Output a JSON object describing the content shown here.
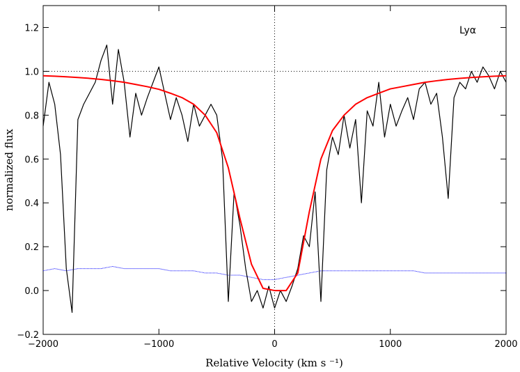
{
  "chart_data": {
    "type": "line",
    "annotation": "Lyα",
    "x_label": "Relative Velocity (km s ⁻¹)",
    "y_label": "normalized flux",
    "xlim": [
      -2000,
      2000
    ],
    "ylim": [
      -0.2,
      1.3
    ],
    "xticks": [
      {
        "value": -2000,
        "label": "−2000"
      },
      {
        "value": -1000,
        "label": "−1000"
      },
      0,
      1000,
      2000
    ],
    "yticks": [
      {
        "value": -0.2,
        "label": "−0.2"
      },
      {
        "value": 0,
        "label": "0.0"
      },
      0.2,
      0.4,
      0.6,
      0.8,
      {
        "value": 1,
        "label": "1.0"
      },
      1.2
    ],
    "hlines": [
      1.0
    ],
    "vlines": [
      0
    ],
    "series": [
      {
        "color": "#000000",
        "width": 1.2,
        "dash": "none",
        "x": [
          -2000,
          -1950,
          -1900,
          -1850,
          -1800,
          -1750,
          -1700,
          -1650,
          -1600,
          -1550,
          -1500,
          -1450,
          -1400,
          -1350,
          -1300,
          -1250,
          -1200,
          -1150,
          -1100,
          -1050,
          -1000,
          -950,
          -900,
          -850,
          -800,
          -750,
          -700,
          -650,
          -600,
          -550,
          -500,
          -450,
          -400,
          -350,
          -300,
          -250,
          -200,
          -150,
          -100,
          -50,
          0,
          50,
          100,
          150,
          200,
          250,
          300,
          350,
          400,
          450,
          500,
          550,
          600,
          650,
          700,
          750,
          800,
          850,
          900,
          950,
          1000,
          1050,
          1100,
          1150,
          1200,
          1250,
          1300,
          1350,
          1400,
          1450,
          1500,
          1550,
          1600,
          1650,
          1700,
          1750,
          1800,
          1850,
          1900,
          1950,
          2000
        ],
        "values": [
          0.75,
          0.95,
          0.85,
          0.62,
          0.1,
          -0.1,
          0.78,
          0.85,
          0.9,
          0.95,
          1.05,
          1.12,
          0.85,
          1.1,
          0.95,
          0.7,
          0.9,
          0.8,
          0.88,
          0.95,
          1.02,
          0.9,
          0.78,
          0.88,
          0.8,
          0.68,
          0.85,
          0.75,
          0.8,
          0.85,
          0.8,
          0.6,
          -0.05,
          0.45,
          0.3,
          0.1,
          -0.05,
          0.0,
          -0.08,
          0.02,
          -0.08,
          0.0,
          -0.05,
          0.02,
          0.1,
          0.25,
          0.2,
          0.45,
          -0.05,
          0.55,
          0.7,
          0.62,
          0.8,
          0.65,
          0.78,
          0.4,
          0.82,
          0.75,
          0.95,
          0.7,
          0.85,
          0.75,
          0.82,
          0.88,
          0.78,
          0.92,
          0.95,
          0.85,
          0.9,
          0.7,
          0.42,
          0.88,
          0.95,
          0.92,
          1.0,
          0.95,
          1.02,
          0.98,
          0.92,
          1.0,
          0.95
        ]
      },
      {
        "color": "#ff0000",
        "width": 2,
        "dash": "none",
        "x": [
          -2000,
          -1900,
          -1800,
          -1700,
          -1600,
          -1500,
          -1400,
          -1300,
          -1200,
          -1100,
          -1000,
          -900,
          -800,
          -700,
          -600,
          -500,
          -400,
          -300,
          -200,
          -100,
          0,
          100,
          200,
          300,
          400,
          500,
          600,
          700,
          800,
          900,
          1000,
          1100,
          1200,
          1300,
          1400,
          1500,
          1600,
          1700,
          1800,
          1900,
          2000
        ],
        "values": [
          0.98,
          0.978,
          0.975,
          0.972,
          0.968,
          0.963,
          0.957,
          0.95,
          0.94,
          0.93,
          0.918,
          0.9,
          0.88,
          0.85,
          0.8,
          0.72,
          0.56,
          0.33,
          0.12,
          0.01,
          0.0,
          0.0,
          0.08,
          0.36,
          0.6,
          0.73,
          0.8,
          0.85,
          0.88,
          0.9,
          0.92,
          0.93,
          0.94,
          0.95,
          0.957,
          0.963,
          0.968,
          0.972,
          0.975,
          0.978,
          0.98
        ]
      },
      {
        "color": "#0000ff",
        "width": 1,
        "dash": "1,1",
        "x": [
          -2000,
          -1900,
          -1800,
          -1700,
          -1600,
          -1500,
          -1400,
          -1300,
          -1200,
          -1100,
          -1000,
          -900,
          -800,
          -700,
          -600,
          -500,
          -400,
          -300,
          -200,
          -100,
          0,
          100,
          200,
          300,
          400,
          500,
          600,
          700,
          800,
          900,
          1000,
          1100,
          1200,
          1300,
          1400,
          1500,
          1600,
          1700,
          1800,
          1900,
          2000
        ],
        "values": [
          0.09,
          0.1,
          0.09,
          0.1,
          0.1,
          0.1,
          0.11,
          0.1,
          0.1,
          0.1,
          0.1,
          0.09,
          0.09,
          0.09,
          0.08,
          0.08,
          0.07,
          0.07,
          0.06,
          0.05,
          0.05,
          0.06,
          0.07,
          0.08,
          0.09,
          0.09,
          0.09,
          0.09,
          0.09,
          0.09,
          0.09,
          0.09,
          0.09,
          0.08,
          0.08,
          0.08,
          0.08,
          0.08,
          0.08,
          0.08,
          0.08
        ]
      }
    ]
  }
}
